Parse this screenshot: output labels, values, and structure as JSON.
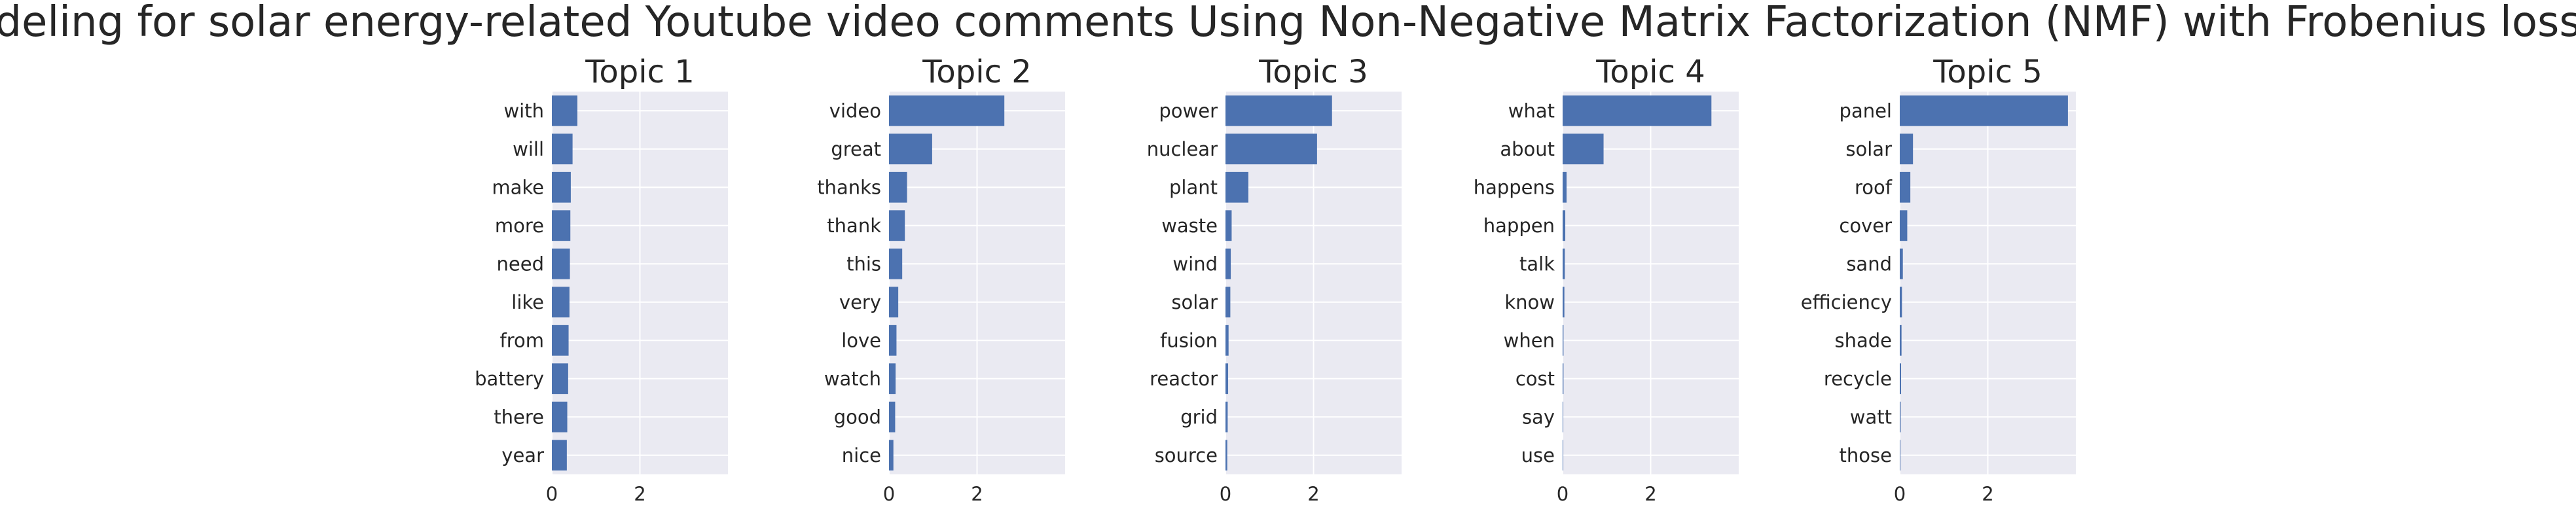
{
  "chart_data": {
    "type": "bar",
    "orientation": "horizontal",
    "title": "Topic modeling for solar energy-related Youtube video comments Using Non-Negative Matrix Factorization (NMF) with Frobenius loss function",
    "grid": true,
    "bar_color": "#4c72b0",
    "panel_background": "#eaeaf2",
    "grid_color": "#ffffff",
    "xlim": [
      0,
      4.0
    ],
    "xticks": [
      0,
      2
    ],
    "topics": [
      {
        "title": "Topic 1",
        "words": [
          "with",
          "will",
          "make",
          "more",
          "need",
          "like",
          "from",
          "battery",
          "there",
          "year"
        ],
        "values": [
          0.58,
          0.47,
          0.43,
          0.42,
          0.41,
          0.4,
          0.38,
          0.37,
          0.35,
          0.34
        ]
      },
      {
        "title": "Topic 2",
        "words": [
          "video",
          "great",
          "thanks",
          "thank",
          "this",
          "very",
          "love",
          "watch",
          "good",
          "nice"
        ],
        "values": [
          2.62,
          0.98,
          0.41,
          0.36,
          0.3,
          0.21,
          0.17,
          0.15,
          0.14,
          0.1
        ]
      },
      {
        "title": "Topic 3",
        "words": [
          "power",
          "nuclear",
          "plant",
          "waste",
          "wind",
          "solar",
          "fusion",
          "reactor",
          "grid",
          "source"
        ],
        "values": [
          2.42,
          2.08,
          0.52,
          0.14,
          0.12,
          0.11,
          0.07,
          0.06,
          0.05,
          0.04
        ]
      },
      {
        "title": "Topic 4",
        "words": [
          "what",
          "about",
          "happens",
          "happen",
          "talk",
          "know",
          "when",
          "cost",
          "say",
          "use"
        ],
        "values": [
          3.38,
          0.93,
          0.09,
          0.06,
          0.05,
          0.04,
          0.02,
          0.02,
          0.01,
          0.01
        ]
      },
      {
        "title": "Topic 5",
        "words": [
          "panel",
          "solar",
          "roof",
          "cover",
          "sand",
          "efficiency",
          "shade",
          "recycle",
          "watt",
          "those"
        ],
        "values": [
          3.82,
          0.3,
          0.24,
          0.17,
          0.07,
          0.05,
          0.04,
          0.03,
          0.02,
          0.01
        ]
      }
    ]
  }
}
